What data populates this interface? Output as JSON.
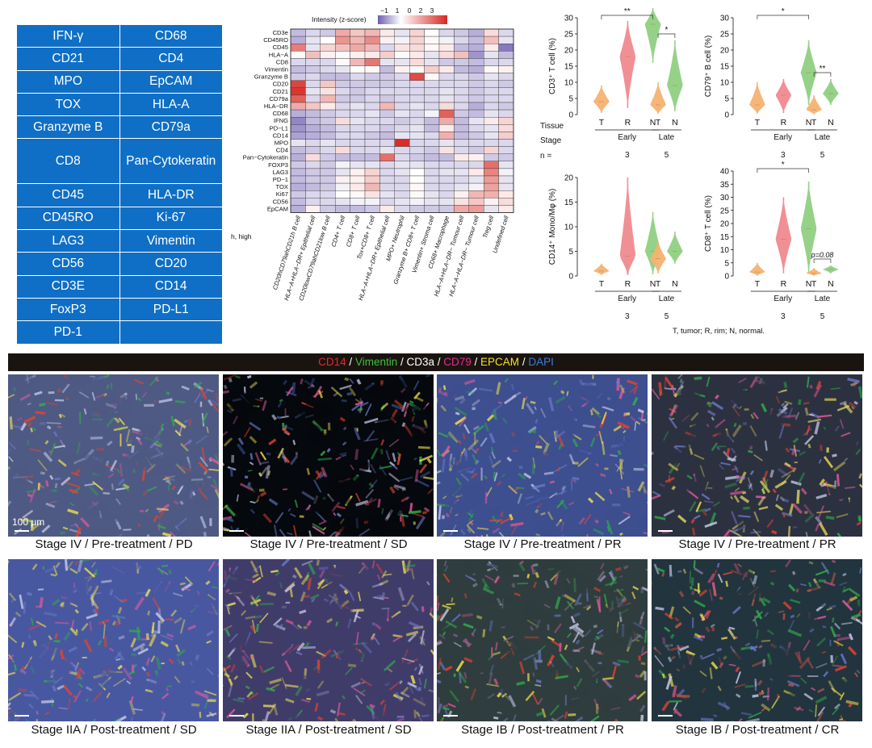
{
  "marker_table": {
    "rows": [
      [
        "IFN-γ",
        "CD68"
      ],
      [
        "CD21",
        "CD4"
      ],
      [
        "MPO",
        "EpCAM"
      ],
      [
        "TOX",
        "HLA-A"
      ],
      [
        "Granzyme B",
        "CD79a"
      ],
      [
        "CD8",
        "Pan-Cytokeratin"
      ],
      [
        "CD45",
        "HLA-DR"
      ],
      [
        "CD45RO",
        "Ki-67"
      ],
      [
        "LAG3",
        "Vimentin"
      ],
      [
        "CD56",
        "CD20"
      ],
      [
        "CD3E",
        "CD14"
      ],
      [
        "FoxP3",
        "PD-L1"
      ],
      [
        "PD-1",
        ""
      ]
    ]
  },
  "heatmap": {
    "legend_title": "Intensity (z-score)",
    "legend_ticks": [
      "−1",
      "1",
      "0",
      "2",
      "3"
    ],
    "footnote": "h, high",
    "rows": [
      "CD3e",
      "CD45RO",
      "CD45",
      "HLA−A",
      "CD8",
      "Vimentin",
      "Granzyme B",
      "CD20",
      "CD21",
      "CD79a",
      "HLA−DR",
      "CD68",
      "IFNG",
      "PD−L1",
      "CD14",
      "MPO",
      "CD4",
      "Pan−Cytokeratin",
      "FOXP3",
      "LAG3",
      "PD−1",
      "TOX",
      "Ki67",
      "CD56",
      "EpCAM"
    ],
    "columns": [
      "CD20hCD79ahCD21h B cell",
      "HLA−A+HLA−DR+ Epithelial cell",
      "CD20lowCD79ahCD21low B cell",
      "CD4+ T cell",
      "CD8+ T cell",
      "Tox+CD8+ T cell",
      "HLA−A+HLA−DR+ Epithelial cell",
      "MPO+ Neutrophil",
      "Granzyme B+ CD8+ T cell",
      "Vimentin+ Stroma cell",
      "CD68+ Macrophage",
      "HLA−A+HLA−DR− Tumour cell",
      "HLA−A−HLA−DR− Tumour cell",
      "Treg cell",
      "Undefined cell"
    ],
    "values": [
      [
        -0.5,
        -0.3,
        -0.4,
        1.2,
        0.8,
        1.0,
        0.3,
        -0.2,
        0.6,
        0.0,
        -0.3,
        -0.4,
        -0.6,
        0.5,
        -0.3
      ],
      [
        -0.6,
        -0.2,
        0.0,
        1.5,
        1.0,
        1.6,
        0.2,
        -0.1,
        0.6,
        0.1,
        -0.1,
        -0.3,
        -0.5,
        0.9,
        -0.2
      ],
      [
        1.8,
        -0.2,
        0.6,
        0.9,
        1.2,
        1.0,
        -0.3,
        0.4,
        0.5,
        0.1,
        0.3,
        -0.5,
        -0.6,
        0.3,
        -1.0
      ],
      [
        0.1,
        0.9,
        0.2,
        0.1,
        0.2,
        0.3,
        0.7,
        0.1,
        0.3,
        -0.2,
        0.5,
        0.9,
        -0.8,
        -0.2,
        -0.5
      ],
      [
        -0.3,
        -0.3,
        -0.3,
        0.1,
        1.0,
        1.9,
        -0.2,
        -0.2,
        0.5,
        -0.2,
        -0.4,
        -0.4,
        -0.5,
        -0.3,
        -0.3
      ],
      [
        -0.5,
        -0.4,
        -0.3,
        -0.2,
        0.0,
        0.1,
        -0.5,
        0.2,
        0.1,
        0.7,
        0.3,
        -0.5,
        -0.6,
        0.1,
        0.2
      ],
      [
        -0.4,
        -0.3,
        -0.5,
        -0.5,
        -0.3,
        -0.4,
        -0.4,
        -0.3,
        2.5,
        0.1,
        -0.3,
        -0.3,
        -0.4,
        -0.2,
        -0.3
      ],
      [
        2.6,
        -0.3,
        0.8,
        -0.4,
        -0.4,
        -0.4,
        -0.4,
        -0.3,
        -0.3,
        -0.3,
        -0.3,
        -0.3,
        -0.4,
        -0.3,
        -0.4
      ],
      [
        2.8,
        -0.2,
        0.4,
        -0.3,
        -0.4,
        -0.3,
        -0.3,
        -0.3,
        -0.3,
        -0.3,
        -0.2,
        -0.3,
        -0.4,
        -0.3,
        -0.3
      ],
      [
        2.2,
        -0.3,
        1.0,
        -0.4,
        -0.4,
        -0.3,
        -0.4,
        -0.3,
        -0.3,
        -0.3,
        -0.2,
        -0.3,
        -0.4,
        -0.3,
        -0.3
      ],
      [
        1.2,
        0.8,
        0.3,
        -0.3,
        -0.2,
        -0.3,
        1.0,
        -0.3,
        -0.2,
        -0.3,
        0.5,
        -0.3,
        -0.6,
        -0.3,
        -0.4
      ],
      [
        -0.6,
        -0.5,
        -0.4,
        -0.3,
        -0.3,
        -0.2,
        -0.4,
        -0.2,
        -0.3,
        -0.1,
        2.2,
        -0.4,
        -0.5,
        -0.2,
        -0.3
      ],
      [
        -0.9,
        -0.5,
        -0.4,
        0.5,
        -0.2,
        -0.3,
        -0.3,
        -0.4,
        -0.3,
        -0.5,
        1.2,
        -0.5,
        -0.2,
        0.3,
        0.6
      ],
      [
        -0.8,
        -0.6,
        -0.5,
        -0.3,
        -0.3,
        -0.3,
        -0.4,
        -0.3,
        -0.2,
        -0.5,
        0.3,
        -0.5,
        -0.3,
        -0.2,
        0.5
      ],
      [
        -0.7,
        -0.6,
        -0.5,
        -0.3,
        -0.3,
        -0.4,
        -0.5,
        -0.2,
        -0.2,
        -0.3,
        1.1,
        -0.5,
        -0.4,
        -0.2,
        0.7
      ],
      [
        -0.2,
        -0.3,
        -0.2,
        -0.3,
        -0.3,
        -0.3,
        -0.3,
        2.9,
        -0.3,
        -0.3,
        -0.2,
        -0.3,
        -0.3,
        -0.3,
        -0.3
      ],
      [
        -0.5,
        -0.4,
        -0.3,
        0.5,
        -0.3,
        -0.3,
        -0.2,
        -0.3,
        -0.3,
        -0.4,
        0.4,
        -0.3,
        -0.4,
        0.6,
        -0.3
      ],
      [
        -0.6,
        0.5,
        -0.4,
        -0.5,
        -0.5,
        -0.5,
        2.0,
        -0.3,
        -0.4,
        -0.5,
        -0.5,
        0.3,
        0.2,
        -0.4,
        -0.4
      ],
      [
        -0.4,
        -0.3,
        -0.4,
        -0.1,
        -0.2,
        -0.2,
        -0.3,
        -0.2,
        -0.2,
        -0.3,
        -0.3,
        -0.3,
        -0.3,
        2.0,
        -0.2
      ],
      [
        -0.5,
        -0.4,
        -0.4,
        -0.2,
        0.2,
        0.6,
        -0.3,
        -0.2,
        0.0,
        -0.3,
        -0.2,
        -0.2,
        0.3,
        1.7,
        -0.1
      ],
      [
        -0.5,
        -0.4,
        -0.4,
        0.2,
        0.2,
        0.7,
        -0.3,
        -0.3,
        0.0,
        -0.3,
        -0.3,
        -0.3,
        -0.2,
        1.4,
        -0.2
      ],
      [
        -0.6,
        -0.5,
        -0.4,
        -0.1,
        0.3,
        1.0,
        -0.3,
        -0.3,
        0.1,
        -0.3,
        -0.3,
        -0.2,
        -0.1,
        1.3,
        -0.2
      ],
      [
        -0.4,
        -0.3,
        -0.3,
        0.0,
        0.1,
        0.4,
        -0.2,
        -0.3,
        0.1,
        -0.2,
        -0.3,
        0.2,
        1.0,
        1.1,
        0.3
      ],
      [
        -0.5,
        -0.3,
        -0.3,
        -0.2,
        -0.1,
        -0.1,
        -0.3,
        -0.2,
        -0.1,
        -0.2,
        -0.2,
        0.4,
        0.8,
        0.2,
        0.5
      ],
      [
        -0.6,
        0.2,
        -0.4,
        -0.5,
        -0.5,
        -0.4,
        0.3,
        -0.3,
        -0.4,
        -0.4,
        -0.4,
        1.2,
        1.4,
        -0.2,
        0.3
      ]
    ]
  },
  "violins": {
    "tissue_label": "Tissue",
    "stage_label": "Stage",
    "n_label": "n =",
    "early_label": "Early",
    "late_label": "Late",
    "n_early": "3",
    "n_late": "5",
    "footnote": "T, tumor; R, rim; N, normal.",
    "colors": {
      "T": "#f5b270",
      "R": "#ef8a8e",
      "N": "#8fd082"
    },
    "panels": [
      {
        "ylabel": "CD3⁺ T cell (%)",
        "ymax": 30,
        "ticks": [
          0,
          5,
          10,
          15,
          20,
          25,
          30
        ],
        "early": [
          {
            "tissue": "T",
            "median": 4,
            "min": 0.5,
            "max": 9
          },
          {
            "tissue": "R",
            "median": 18,
            "min": 2,
            "max": 29
          },
          {
            "tissue": "N",
            "median": 28,
            "min": 16,
            "max": 33
          }
        ],
        "late": [
          {
            "tissue": "T",
            "median": 3,
            "min": 0.2,
            "max": 10
          },
          {
            "tissue": "N",
            "median": 9,
            "min": 1,
            "max": 23
          }
        ],
        "sig": [
          {
            "group": "early",
            "from": "T",
            "to": "N",
            "label": "**"
          },
          {
            "group": "late",
            "from": "T",
            "to": "N",
            "label": "*"
          }
        ]
      },
      {
        "ylabel": "CD79⁺ B cell (%)",
        "ymax": 30,
        "ticks": [
          0,
          5,
          10,
          15,
          20,
          25,
          30
        ],
        "early": [
          {
            "tissue": "T",
            "median": 3,
            "min": 0.2,
            "max": 10
          },
          {
            "tissue": "R",
            "median": 6,
            "min": 0.5,
            "max": 11
          },
          {
            "tissue": "N",
            "median": 13,
            "min": 3,
            "max": 23
          }
        ],
        "late": [
          {
            "tissue": "T",
            "median": 1.5,
            "min": 0.1,
            "max": 6
          },
          {
            "tissue": "N",
            "median": 6.5,
            "min": 3,
            "max": 11
          }
        ],
        "sig": [
          {
            "group": "early",
            "from": "T",
            "to": "N",
            "label": "*"
          },
          {
            "group": "late",
            "from": "T",
            "to": "N",
            "label": "**"
          }
        ]
      },
      {
        "ylabel": "CD14⁺ Mono/Mφ (%)",
        "ymax": 20,
        "ticks": [
          0,
          5,
          10,
          15,
          20
        ],
        "early": [
          {
            "tissue": "T",
            "median": 1,
            "min": 0.2,
            "max": 2.5
          },
          {
            "tissue": "R",
            "median": 4,
            "min": 0.2,
            "max": 20
          },
          {
            "tissue": "N",
            "median": 5,
            "min": 0.3,
            "max": 13
          }
        ],
        "late": [
          {
            "tissue": "T",
            "median": 3.5,
            "min": 0.5,
            "max": 7
          },
          {
            "tissue": "N",
            "median": 5,
            "min": 2.5,
            "max": 9
          }
        ],
        "sig": []
      },
      {
        "ylabel": "CD8⁺ T cell (%)",
        "ymax": 40,
        "ticks": [
          0,
          5,
          10,
          15,
          20,
          25,
          30,
          35,
          40
        ],
        "early": [
          {
            "tissue": "T",
            "median": 1.5,
            "min": 0.1,
            "max": 5
          },
          {
            "tissue": "R",
            "median": 14,
            "min": 1,
            "max": 30
          },
          {
            "tissue": "N",
            "median": 18,
            "min": 1,
            "max": 36
          }
        ],
        "late": [
          {
            "tissue": "T",
            "median": 1,
            "min": 0.1,
            "max": 3
          },
          {
            "tissue": "N",
            "median": 2.5,
            "min": 1,
            "max": 4
          }
        ],
        "sig": [
          {
            "group": "early",
            "from": "T",
            "to": "N",
            "label": "*"
          },
          {
            "group": "late",
            "from": "T",
            "to": "N",
            "label": "p=0.08"
          }
        ]
      }
    ]
  },
  "images": {
    "legend": [
      {
        "text": "CD14",
        "color": "#e8262b"
      },
      {
        "text": " / ",
        "color": "#ffffff"
      },
      {
        "text": "Vimentin",
        "color": "#3fbf3a"
      },
      {
        "text": " / ",
        "color": "#ffffff"
      },
      {
        "text": "CD3a",
        "color": "#ffffff"
      },
      {
        "text": " / ",
        "color": "#ffffff"
      },
      {
        "text": "CD79",
        "color": "#e8298f"
      },
      {
        "text": " / ",
        "color": "#ffffff"
      },
      {
        "text": "EPCAM",
        "color": "#f2e21e"
      },
      {
        "text": " / ",
        "color": "#ffffff"
      },
      {
        "text": "DAPI",
        "color": "#3b7be0"
      }
    ],
    "scale_bar": "100 μm",
    "panels": [
      {
        "caption": "Stage IV / Pre-treatment / PD",
        "base": "#4e5a84",
        "dominant": "#cfd3ea"
      },
      {
        "caption": "Stage IV / Pre-treatment / SD",
        "base": "#05080c",
        "dominant": "#3c5aa0"
      },
      {
        "caption": "Stage IV / Pre-treatment / PR",
        "base": "#3d4f8e",
        "dominant": "#d3c55a"
      },
      {
        "caption": "Stage IV / Pre-treatment / PR",
        "base": "#2c3140",
        "dominant": "#e2d364"
      },
      {
        "caption": "Stage IIA / Post-treatment / SD",
        "base": "#4858a0",
        "dominant": "#cec45d"
      },
      {
        "caption": "Stage IIA / Post-treatment / SD",
        "base": "#403c6a",
        "dominant": "#d8c559"
      },
      {
        "caption": "Stage IB / Post-treatment / PR",
        "base": "#2f3d3e",
        "dominant": "#7d6d88"
      },
      {
        "caption": "Stage IB / Post-treatment / CR",
        "base": "#22343e",
        "dominant": "#c2584a"
      }
    ]
  }
}
